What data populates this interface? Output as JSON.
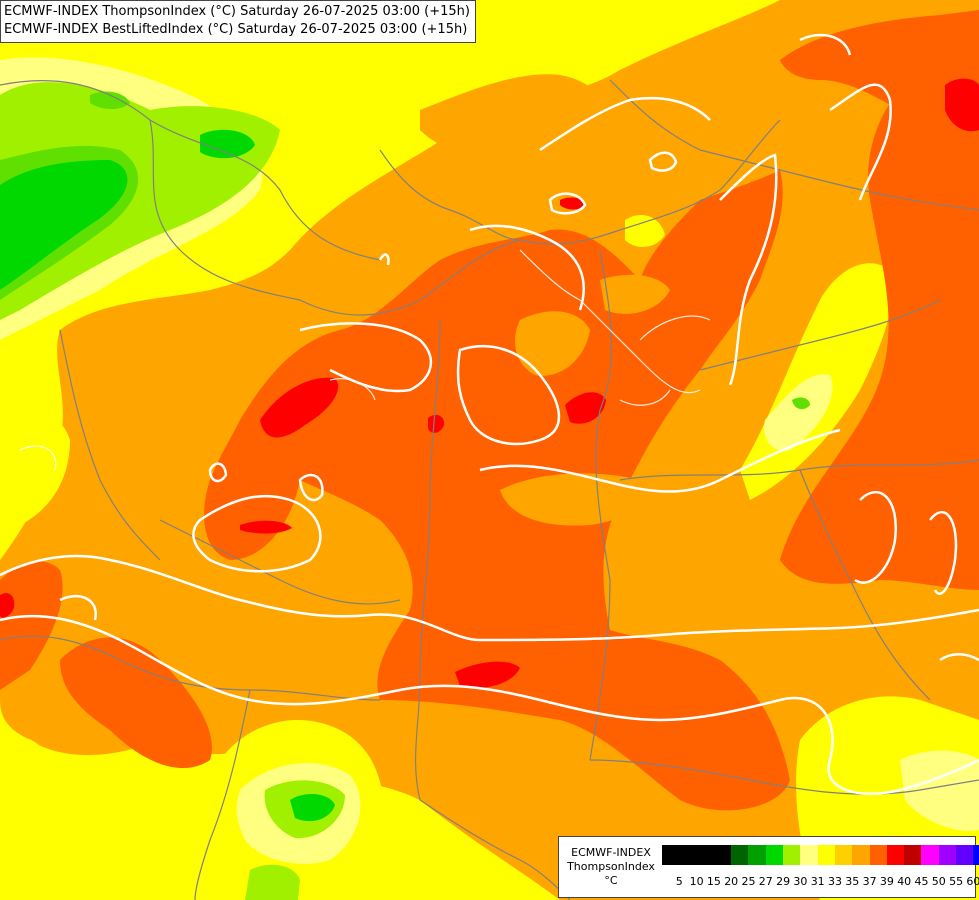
{
  "header": {
    "line1": "ECMWF-INDEX ThompsonIndex (°C) Saturday 26-07-2025 03:00 (+15h)",
    "line2": "ECMWF-INDEX BestLiftedIndex (°C) Saturday 26-07-2025 03:00 (+15h)"
  },
  "legend": {
    "line1": "ECMWF-INDEX",
    "line2": "ThompsonIndex",
    "unit": "°C",
    "ticks": [
      "5",
      "10",
      "15",
      "20",
      "25",
      "27",
      "29",
      "30",
      "31",
      "33",
      "35",
      "37",
      "39",
      "40",
      "45",
      "50",
      "55",
      "60"
    ],
    "colors": [
      "#000000",
      "#000000",
      "#000000",
      "#000000",
      "#006400",
      "#00a000",
      "#00d800",
      "#a0f000",
      "#ffff80",
      "#ffff00",
      "#ffd000",
      "#ffa500",
      "#ff6000",
      "#ff0000",
      "#c00000",
      "#ff00ff",
      "#a000ff",
      "#6000ff",
      "#0000ff"
    ]
  },
  "map": {
    "field_colors": {
      "below_27": "#00d800",
      "27_29": "#60e000",
      "29_30": "#a0f000",
      "30_31": "#ffff80",
      "31_33": "#ffff00",
      "33_35": "#ffa500",
      "35_37": "#ff6000",
      "37_39": "#ff0000"
    },
    "contour_color": "#ffffff",
    "border_color": "#808080"
  }
}
